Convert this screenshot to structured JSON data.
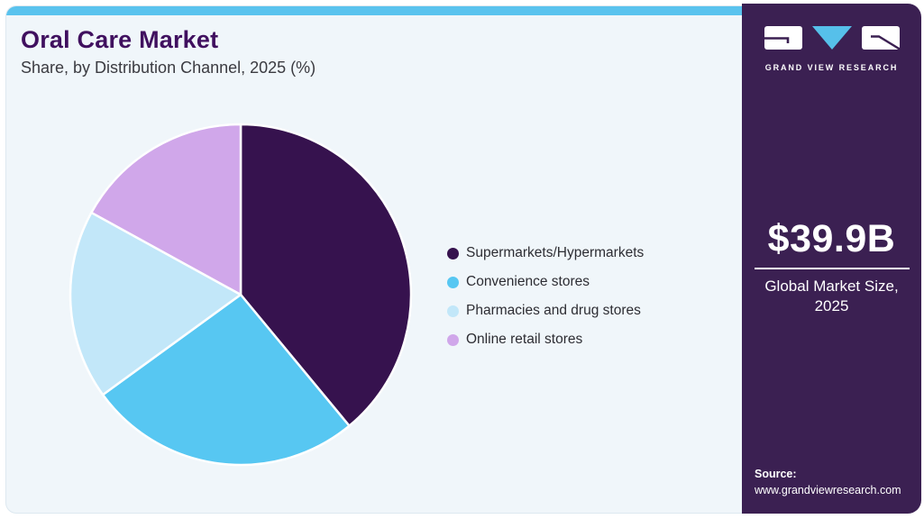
{
  "page": {
    "title": "Oral Care Market",
    "subtitle": "Share, by Distribution Channel, 2025 (%)"
  },
  "chart_data": {
    "type": "pie",
    "title": "Oral Care Market",
    "subtitle": "Share, by Distribution Channel, 2025 (%)",
    "unit": "% share",
    "categories": [
      "Supermarkets/Hypermarkets",
      "Convenience stores",
      "Pharmacies and drug stores",
      "Online retail stores"
    ],
    "values": [
      39,
      26,
      18,
      17
    ],
    "colors": [
      "#36124e",
      "#57c7f2",
      "#c2e7f9",
      "#d0a7ea"
    ],
    "legend_position": "right",
    "start_angle": "12 o'clock, clockwise",
    "data_labels": "none"
  },
  "sidebar": {
    "logo_text": "GRAND VIEW RESEARCH",
    "market_size_value": "$39.9B",
    "market_size_label": "Global Market Size, 2025",
    "source_label": "Source:",
    "source_url": "www.grandviewresearch.com"
  },
  "theme": {
    "topbar_color": "#5ac3ee",
    "card_background": "#f0f6fa",
    "title_color": "#40105f",
    "sidebar_background": "#3b2052",
    "logo_triangle_color": "#56c0ea"
  }
}
